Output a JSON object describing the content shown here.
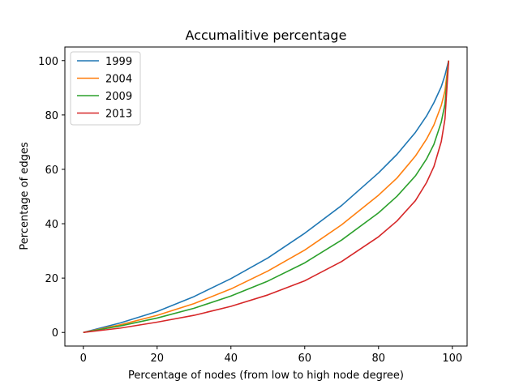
{
  "chart_data": {
    "type": "line",
    "title": "Accumalitive percentage",
    "xlabel": "Percentage of nodes (from low to high node degree)",
    "ylabel": "Percentage of edges",
    "xlim": [
      -5,
      104
    ],
    "ylim": [
      -5,
      105
    ],
    "xticks": [
      0,
      20,
      40,
      60,
      80,
      100
    ],
    "yticks": [
      0,
      20,
      40,
      60,
      80,
      100
    ],
    "grid": false,
    "legend_position": "upper-left",
    "x": [
      0,
      10,
      20,
      30,
      40,
      50,
      60,
      70,
      80,
      85,
      90,
      93,
      95,
      97,
      98,
      99
    ],
    "series": [
      {
        "name": "1999",
        "color": "#1f77b4",
        "values": [
          0,
          3.5,
          7.7,
          13.2,
          19.8,
          27.4,
          36.5,
          46.7,
          58.7,
          65.5,
          73.6,
          79.6,
          84.5,
          90.4,
          94.6,
          100
        ]
      },
      {
        "name": "2004",
        "color": "#ff7f0e",
        "values": [
          0,
          2.8,
          6.3,
          10.6,
          16.0,
          22.6,
          30.3,
          39.6,
          50.5,
          56.8,
          64.9,
          71.1,
          76.3,
          83.5,
          88.9,
          100
        ]
      },
      {
        "name": "2009",
        "color": "#2ca02c",
        "values": [
          0,
          2.4,
          5.3,
          8.9,
          13.4,
          18.9,
          25.6,
          34.0,
          44.0,
          50.1,
          57.6,
          63.8,
          69.2,
          77.4,
          84.0,
          100
        ]
      },
      {
        "name": "2013",
        "color": "#d62728",
        "values": [
          0,
          1.6,
          3.8,
          6.3,
          9.6,
          13.8,
          19.0,
          26.1,
          35.2,
          41.0,
          48.5,
          55.1,
          61.0,
          70.2,
          78.5,
          100
        ]
      }
    ]
  }
}
